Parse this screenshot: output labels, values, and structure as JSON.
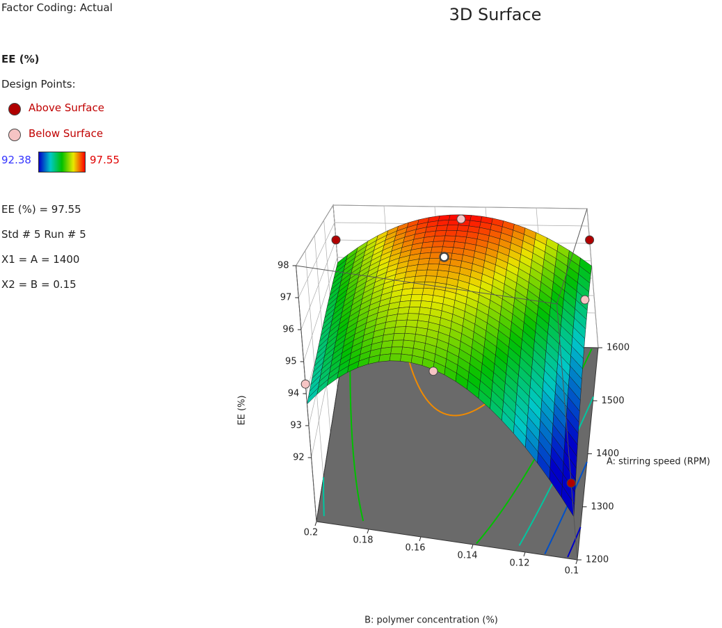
{
  "factor_coding": "Factor Coding: Actual",
  "chart_data": {
    "type": "surface3d",
    "title": "3D Surface",
    "response_label": "EE (%)",
    "design_points_label": "Design Points:",
    "color_scale": {
      "min": 92.38,
      "max": 97.55,
      "colors": [
        "#0000c8",
        "#00c8c8",
        "#00c000",
        "#e8e800",
        "#ff0000"
      ]
    },
    "annotations": [
      "EE (%) = 97.55",
      "Std # 5 Run # 5",
      "X1 = A = 1400",
      "X2 = B = 0.15"
    ],
    "z_label": "EE (%)",
    "zlim": [
      90,
      98
    ],
    "zticks": [
      92,
      93,
      94,
      95,
      96,
      97,
      98
    ],
    "x_label": "A: stirring speed (RPM)",
    "xlim": [
      1200,
      1600
    ],
    "xticks": [
      1200,
      1300,
      1400,
      1500,
      1600
    ],
    "y_label": "B: polymer concentration (%)",
    "ylim": [
      0.1,
      0.2
    ],
    "yticks": [
      0.1,
      0.12,
      0.14,
      0.16,
      0.18,
      0.2
    ],
    "series": [
      {
        "name": "Above Surface",
        "color": "#b00000",
        "colors": [
          "#b00000",
          "#b00000",
          "#b00000",
          "#ffffff"
        ],
        "x": [
          1600,
          1600,
          1200,
          1400
        ],
        "y": [
          0.2,
          0.1,
          0.1,
          0.15
        ],
        "values": [
          96,
          96.2,
          92.4,
          97.55
        ]
      },
      {
        "name": "Below Surface",
        "color": "#f6c4c4",
        "x": [
          1200,
          1200,
          1500,
          1600
        ],
        "y": [
          0.2,
          0.15,
          0.1,
          0.15
        ],
        "values": [
          94.3,
          95.3,
          94.8,
          97.3
        ]
      }
    ]
  }
}
